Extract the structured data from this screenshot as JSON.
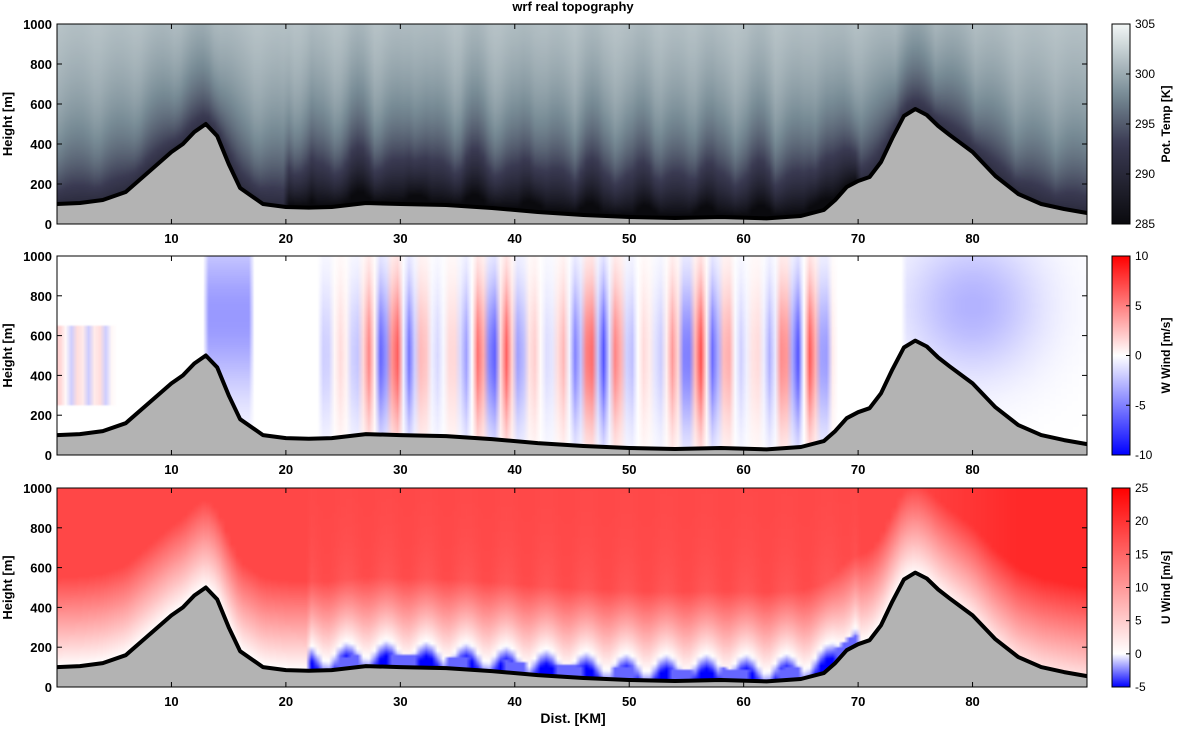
{
  "title": "wrf real topography",
  "xlabel": "Dist. [KM]",
  "chart_data": [
    {
      "type": "heatmap",
      "field": "potential_temperature",
      "ylabel": "Height [m]",
      "colorbar_label": "Pot. Temp [K]",
      "colorbar_ticks": [
        285,
        290,
        295,
        300,
        305
      ],
      "clim": [
        285,
        305
      ],
      "colors": {
        "low": "#0a0a0e",
        "mid": "#3a3a52",
        "high": "#f3f7f6"
      },
      "xlim": [
        0,
        90
      ],
      "ylim": [
        0,
        1000
      ],
      "xticks": [
        10,
        20,
        30,
        40,
        50,
        60,
        70,
        80
      ],
      "yticks": [
        0,
        200,
        400,
        600,
        800,
        1000
      ]
    },
    {
      "type": "heatmap",
      "field": "w_wind",
      "ylabel": "Height [m]",
      "colorbar_label": "W Wind [m/s]",
      "colorbar_ticks": [
        -10,
        -5,
        0,
        5,
        10
      ],
      "clim": [
        -10,
        10
      ],
      "colors": {
        "low": "#0000ff",
        "mid": "#ffffff",
        "high": "#ff0000"
      },
      "xlim": [
        0,
        90
      ],
      "ylim": [
        0,
        1000
      ],
      "xticks": [
        10,
        20,
        30,
        40,
        50,
        60,
        70,
        80
      ],
      "yticks": [
        0,
        200,
        400,
        600,
        800,
        1000
      ]
    },
    {
      "type": "heatmap",
      "field": "u_wind",
      "ylabel": "Height [m]",
      "colorbar_label": "U Wind [m/s]",
      "colorbar_ticks": [
        -5,
        0,
        5,
        10,
        15,
        20,
        25
      ],
      "clim": [
        -5,
        25
      ],
      "colors": {
        "low": "#0000ff",
        "mid": "#ffffff",
        "high": "#ff0000"
      },
      "xlim": [
        0,
        90
      ],
      "ylim": [
        0,
        1000
      ],
      "xticks": [
        10,
        20,
        30,
        40,
        50,
        60,
        70,
        80
      ],
      "yticks": [
        0,
        200,
        400,
        600,
        800,
        1000
      ]
    }
  ],
  "terrain": {
    "color": "#b3b3b3",
    "x": [
      0,
      2,
      4,
      6,
      8,
      10,
      11,
      12,
      13,
      14,
      15,
      16,
      18,
      20,
      22,
      24,
      27,
      30,
      34,
      38,
      42,
      46,
      50,
      54,
      58,
      62,
      65,
      67,
      68,
      69,
      70,
      71,
      72,
      73,
      74,
      75,
      76,
      77,
      78,
      80,
      82,
      84,
      86,
      88,
      90
    ],
    "y": [
      100,
      105,
      120,
      160,
      260,
      360,
      400,
      460,
      500,
      440,
      300,
      180,
      100,
      85,
      82,
      85,
      105,
      100,
      95,
      80,
      60,
      45,
      35,
      30,
      35,
      28,
      40,
      70,
      120,
      185,
      215,
      235,
      310,
      430,
      540,
      575,
      545,
      490,
      445,
      360,
      240,
      150,
      100,
      75,
      55
    ]
  }
}
